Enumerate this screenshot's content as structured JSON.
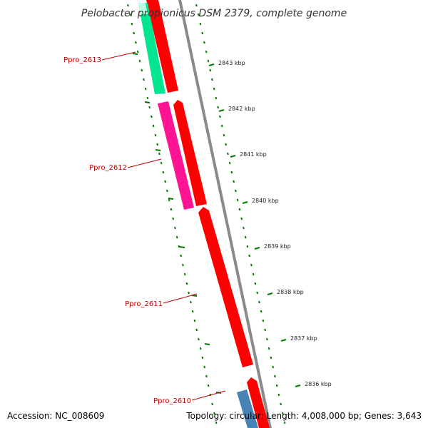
{
  "title": "Pelobacter propionicus DSM 2379, complete genome",
  "footer": {
    "accession": "Accession: NC_008609",
    "summary": "Topology: circular; Length: 4,008,000 bp; Genes: 3,643"
  },
  "ruler": {
    "labels": [
      "2843 kbp",
      "2842 kbp",
      "2841 kbp",
      "2840 kbp",
      "2839 kbp",
      "2838 kbp",
      "2837 kbp",
      "2836 kbp"
    ],
    "color": "#007a00"
  },
  "genes": [
    {
      "name": "Ppro_2613",
      "color": "#00e58f"
    },
    {
      "name": "Ppro_2612",
      "color": "#ff1493"
    },
    {
      "name": "Ppro_2611",
      "color": "#ff0000"
    },
    {
      "name": "Ppro_2610",
      "color": "#4682b4"
    }
  ],
  "colors": {
    "cds": "#ff0000",
    "label": "#c00000",
    "backbone": "#808080"
  }
}
